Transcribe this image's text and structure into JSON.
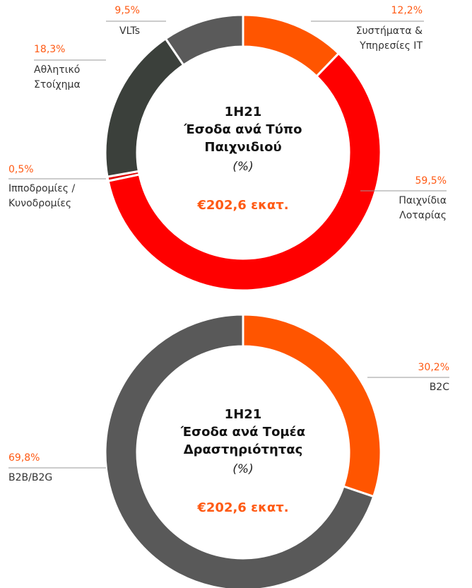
{
  "chart_data": [
    {
      "type": "donut",
      "title": "1H21\nΈσοδα ανά Τύπο\nΠαιχνιδιού",
      "subtitle": "(%)",
      "annotation": "€202,6 εκατ.",
      "categories": [
        "Συστήματα &\nΥπηρεσίες IT",
        "Παιχνίδια\nΛοταρίας",
        "Ιπποδρομίες /\nΚυνοδρομίες",
        "Αθλητικό\nΣτοίχημα",
        "VLTs"
      ],
      "values": [
        12.2,
        59.5,
        0.5,
        18.3,
        9.5
      ],
      "value_labels": [
        "12,2%",
        "59,5%",
        "0,5%",
        "18,3%",
        "9,5%"
      ],
      "colors": [
        "#ff5500",
        "#ff0000",
        "#e00000",
        "#3b403b",
        "#5a5a5a"
      ]
    },
    {
      "type": "donut",
      "title": "1H21\nΈσοδα ανά Τομέα\nΔραστηριότητας",
      "subtitle": "(%)",
      "annotation": "€202,6 εκατ.",
      "categories": [
        "B2C",
        "B2B/B2G"
      ],
      "values": [
        30.2,
        69.8
      ],
      "value_labels": [
        "30,2%",
        "69,8%"
      ],
      "colors": [
        "#ff5500",
        "#595959"
      ]
    }
  ]
}
